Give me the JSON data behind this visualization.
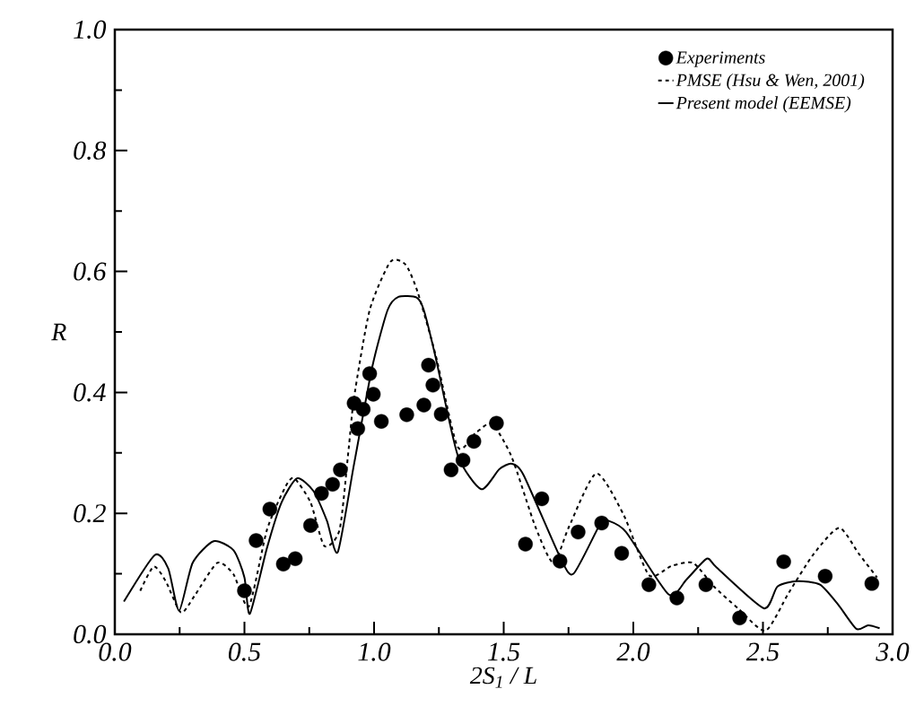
{
  "chart_data": {
    "type": "line",
    "xlabel": "2S$_{1}$ / L",
    "ylabel": "R",
    "xlim": [
      0,
      3
    ],
    "ylim": [
      0,
      1
    ],
    "xticks": [
      {
        "value": 0,
        "label": "0.0"
      },
      0.5,
      {
        "value": 1,
        "label": "1.0"
      },
      1.5,
      {
        "value": 2,
        "label": "2.0"
      },
      2.5,
      {
        "value": 3,
        "label": "3.0"
      }
    ],
    "yticks": [
      {
        "value": 0,
        "label": "0.0"
      },
      0.2,
      0.4,
      0.6,
      0.8,
      {
        "value": 1,
        "label": "1.0"
      }
    ],
    "grid": false,
    "legend": "top right",
    "series": [
      {
        "name": "Experiments",
        "type": "scatter",
        "marker": "circle",
        "color": "#000000",
        "x": [
          0.5,
          0.545,
          0.598,
          0.65,
          0.696,
          0.755,
          0.797,
          0.84,
          0.87,
          0.923,
          0.937,
          0.958,
          0.983,
          0.997,
          1.028,
          1.126,
          1.192,
          1.21,
          1.227,
          1.259,
          1.297,
          1.343,
          1.385,
          1.472,
          1.584,
          1.647,
          1.717,
          1.787,
          1.878,
          1.955,
          2.06,
          2.168,
          2.28,
          2.41,
          2.58,
          2.74,
          2.92
        ],
        "values": [
          0.072,
          0.155,
          0.207,
          0.116,
          0.125,
          0.18,
          0.233,
          0.248,
          0.272,
          0.382,
          0.34,
          0.372,
          0.431,
          0.397,
          0.352,
          0.363,
          0.379,
          0.445,
          0.412,
          0.364,
          0.272,
          0.288,
          0.319,
          0.349,
          0.149,
          0.224,
          0.121,
          0.169,
          0.184,
          0.134,
          0.082,
          0.06,
          0.082,
          0.027,
          0.12,
          0.096,
          0.084
        ]
      },
      {
        "name": "PMSE (Hsu & Wen, 2001)",
        "line_style": "dashed",
        "marker": "none",
        "color": "#000000",
        "x": [
          0.098,
          0.15,
          0.196,
          0.255,
          0.308,
          0.395,
          0.458,
          0.517,
          0.587,
          0.657,
          0.692,
          0.755,
          0.808,
          0.867,
          0.902,
          0.923,
          0.983,
          1.063,
          1.122,
          1.168,
          1.238,
          1.322,
          1.392,
          1.455,
          1.531,
          1.622,
          1.692,
          1.752,
          1.857,
          1.962,
          2.06,
          2.147,
          2.231,
          2.311,
          2.406,
          2.51,
          2.6,
          2.696,
          2.794,
          2.87,
          2.94
        ],
        "values": [
          0.072,
          0.112,
          0.088,
          0.036,
          0.064,
          0.118,
          0.099,
          0.046,
          0.173,
          0.243,
          0.258,
          0.218,
          0.146,
          0.173,
          0.307,
          0.392,
          0.536,
          0.616,
          0.611,
          0.566,
          0.461,
          0.31,
          0.333,
          0.348,
          0.293,
          0.178,
          0.118,
          0.178,
          0.266,
          0.198,
          0.098,
          0.113,
          0.118,
          0.079,
          0.042,
          0.006,
          0.069,
          0.133,
          0.176,
          0.133,
          0.094
        ]
      },
      {
        "name": "Present model (EEMSE)",
        "line_style": "solid",
        "marker": "none",
        "color": "#000000",
        "x": [
          0.035,
          0.154,
          0.206,
          0.248,
          0.3,
          0.381,
          0.458,
          0.5,
          0.521,
          0.587,
          0.643,
          0.703,
          0.766,
          0.818,
          0.86,
          0.923,
          0.993,
          1.052,
          1.094,
          1.164,
          1.192,
          1.238,
          1.322,
          1.413,
          1.483,
          1.531,
          1.577,
          1.717,
          1.769,
          1.874,
          1.902,
          1.972,
          2.136,
          2.206,
          2.283,
          2.322,
          2.503,
          2.556,
          2.633,
          2.72,
          2.79,
          2.86,
          2.906,
          2.95
        ],
        "values": [
          0.054,
          0.131,
          0.109,
          0.039,
          0.118,
          0.154,
          0.139,
          0.094,
          0.034,
          0.143,
          0.218,
          0.258,
          0.237,
          0.188,
          0.136,
          0.282,
          0.442,
          0.536,
          0.558,
          0.557,
          0.536,
          0.457,
          0.297,
          0.24,
          0.273,
          0.282,
          0.263,
          0.128,
          0.1,
          0.184,
          0.188,
          0.169,
          0.066,
          0.091,
          0.125,
          0.11,
          0.043,
          0.079,
          0.088,
          0.082,
          0.049,
          0.009,
          0.015,
          0.01
        ]
      }
    ]
  }
}
